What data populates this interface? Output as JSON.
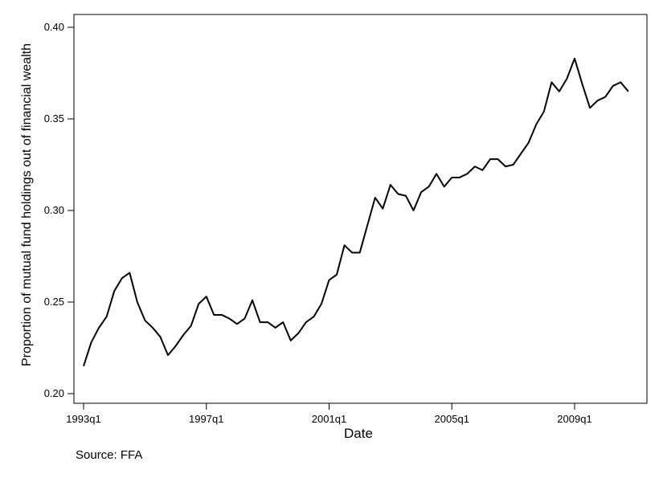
{
  "chart_data": {
    "type": "line",
    "title": "",
    "xlabel": "Date",
    "ylabel": "Proportion of mutual fund holdings out of financial wealth",
    "note": "Source: FFA",
    "ylim": [
      0.2,
      0.4
    ],
    "yticks": [
      0.2,
      0.25,
      0.3,
      0.35,
      0.4
    ],
    "ytick_labels": [
      "0.20",
      "0.25",
      "0.30",
      "0.35",
      "0.40"
    ],
    "xticks": [
      1993,
      1997,
      2001,
      2005,
      2009
    ],
    "xtick_labels": [
      "1993q1",
      "1997q1",
      "2001q1",
      "2005q1",
      "2009q1"
    ],
    "grid": false,
    "series": [
      {
        "color": "#000000",
        "x": [
          1993.0,
          1993.25,
          1993.5,
          1993.75,
          1994.0,
          1994.25,
          1994.5,
          1994.75,
          1995.0,
          1995.25,
          1995.5,
          1995.75,
          1996.0,
          1996.25,
          1996.5,
          1996.75,
          1997.0,
          1997.25,
          1997.5,
          1997.75,
          1998.0,
          1998.25,
          1998.5,
          1998.75,
          1999.0,
          1999.25,
          1999.5,
          1999.75,
          2000.0,
          2000.25,
          2000.5,
          2000.75,
          2001.0,
          2001.25,
          2001.5,
          2001.75,
          2002.0,
          2002.25,
          2002.5,
          2002.75,
          2003.0,
          2003.25,
          2003.5,
          2003.75,
          2004.0,
          2004.25,
          2004.5,
          2004.75,
          2005.0,
          2005.25,
          2005.5,
          2005.75,
          2006.0,
          2006.25,
          2006.5,
          2006.75,
          2007.0,
          2007.25,
          2007.5,
          2007.75,
          2008.0,
          2008.25,
          2008.5,
          2008.75,
          2009.0,
          2009.25,
          2009.5,
          2009.75,
          2010.0,
          2010.25,
          2010.5,
          2010.75
        ],
        "values": [
          0.215,
          0.228,
          0.236,
          0.242,
          0.256,
          0.263,
          0.266,
          0.25,
          0.24,
          0.236,
          0.231,
          0.221,
          0.226,
          0.232,
          0.237,
          0.249,
          0.253,
          0.243,
          0.243,
          0.241,
          0.238,
          0.241,
          0.251,
          0.239,
          0.239,
          0.236,
          0.239,
          0.229,
          0.233,
          0.239,
          0.242,
          0.249,
          0.262,
          0.265,
          0.281,
          0.277,
          0.277,
          0.292,
          0.307,
          0.301,
          0.314,
          0.309,
          0.308,
          0.3,
          0.31,
          0.313,
          0.32,
          0.313,
          0.318,
          0.318,
          0.32,
          0.324,
          0.322,
          0.328,
          0.328,
          0.324,
          0.325,
          0.331,
          0.337,
          0.347,
          0.354,
          0.37,
          0.365,
          0.372,
          0.383,
          0.369,
          0.356,
          0.36,
          0.362,
          0.368,
          0.37,
          0.365
        ]
      }
    ]
  }
}
